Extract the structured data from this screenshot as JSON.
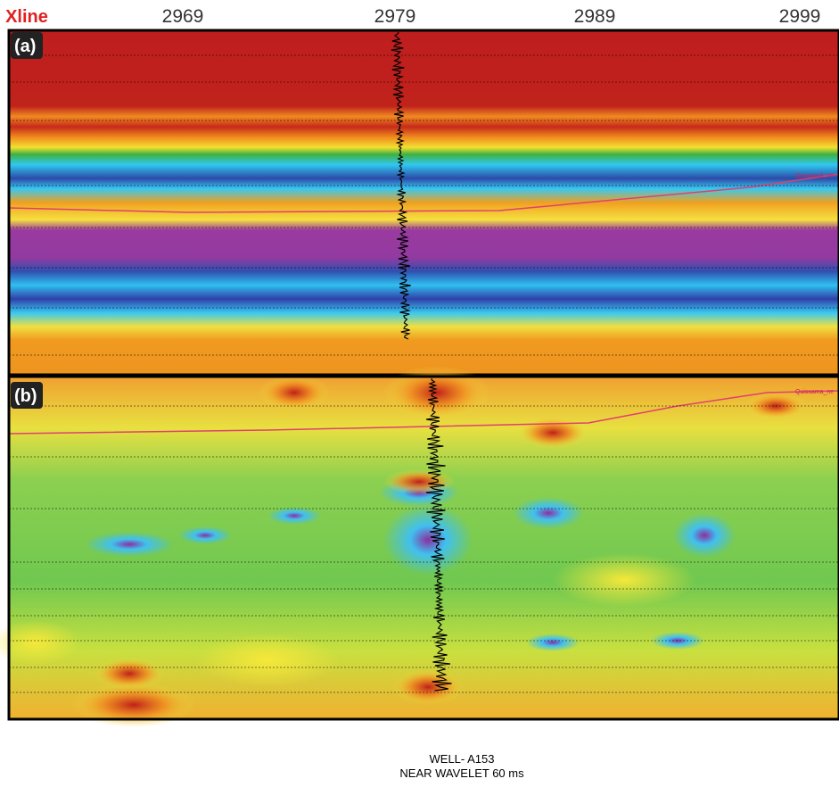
{
  "axis": {
    "title": "Xline",
    "ticks": [
      "2969",
      "2979",
      "2989",
      "2999"
    ]
  },
  "panels": [
    {
      "label": "(a)",
      "horizon": "Quissamã_ne"
    },
    {
      "label": "(b)",
      "horizon": "Quissama_ne"
    }
  ],
  "caption": [
    "WELL- A153",
    "NEAR WAVELET 60 ms"
  ]
}
